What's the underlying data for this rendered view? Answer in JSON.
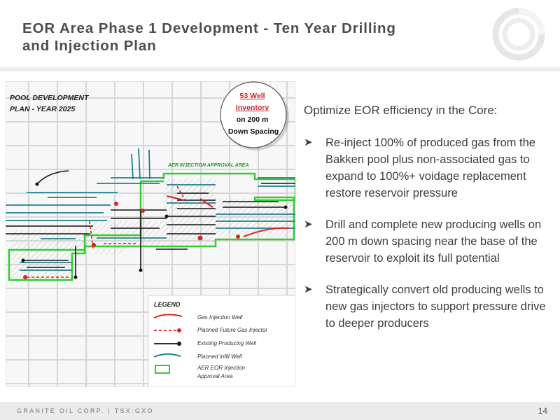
{
  "slide": {
    "title": "EOR Area Phase 1 Development - Ten Year Drilling\nand Injection Plan"
  },
  "map": {
    "plan_label_line1": "POOL DEVELOPMENT",
    "plan_label_line2": "PLAN - YEAR 2025",
    "callout": {
      "line1": "53 Well",
      "line2": "Inventory",
      "line3": "on 200 m",
      "line4": "Down Spacing"
    },
    "approval_area_label": "AER INJECTION APPROVAL AREA",
    "legend": {
      "title": "LEGEND",
      "items": [
        "Gas Injection Well",
        "Planned Future Gas Injector",
        "Existing Producing Well",
        "Planned Infill Well",
        "AER EOR Injection",
        "Approval Area"
      ]
    },
    "colors": {
      "approval_boundary": "#33cc33",
      "injection": "#e02020",
      "existing": "#111111",
      "infill": "#1f7f8f",
      "grid": "#d9d9d9"
    }
  },
  "content": {
    "lead": "Optimize EOR efficiency in the Core:",
    "bullets": [
      "Re-inject 100% of produced gas from the Bakken pool plus non-associated gas to expand to 100%+ voidage replacement restore reservoir pressure",
      "Drill and complete new producing wells on 200 m down spacing near the base of the reservoir to exploit its full potential",
      "Strategically convert old producing wells to new gas injectors to support pressure drive to deeper producers"
    ]
  },
  "footer": {
    "company": "GRANITE OIL CORP. | TSX:GXO",
    "page": "14"
  }
}
